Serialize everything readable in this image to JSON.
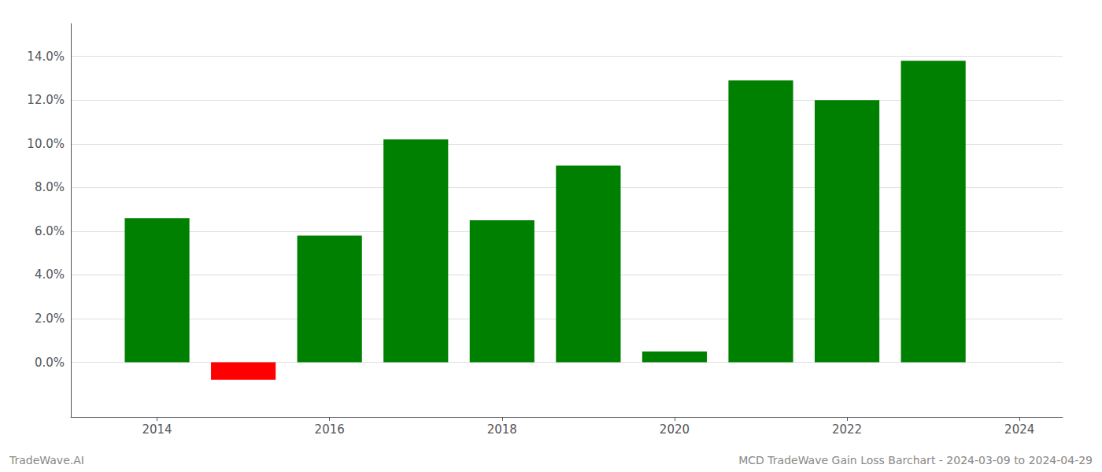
{
  "chart_data": {
    "type": "bar",
    "x": [
      2014,
      2015,
      2016,
      2017,
      2018,
      2019,
      2020,
      2021,
      2022,
      2023
    ],
    "values": [
      0.066,
      -0.008,
      0.058,
      0.102,
      0.065,
      0.09,
      0.005,
      0.129,
      0.12,
      0.138
    ],
    "colors": [
      "#008000",
      "#ff0000",
      "#008000",
      "#008000",
      "#008000",
      "#008000",
      "#008000",
      "#008000",
      "#008000",
      "#008000"
    ],
    "xlim": [
      2013.0,
      2024.5
    ],
    "xticks": [
      2014,
      2016,
      2018,
      2020,
      2022,
      2024
    ],
    "ylim": [
      -0.025,
      0.155
    ],
    "yticks": [
      {
        "value": 0.0,
        "label": "0.0%"
      },
      {
        "value": 0.02,
        "label": "2.0%"
      },
      {
        "value": 0.04,
        "label": "4.0%"
      },
      {
        "value": 0.06,
        "label": "6.0%"
      },
      {
        "value": 0.08,
        "label": "8.0%"
      },
      {
        "value": 0.1,
        "label": "10.0%"
      },
      {
        "value": 0.12,
        "label": "12.0%"
      },
      {
        "value": 0.14,
        "label": "14.0%"
      }
    ],
    "grid": true,
    "annotations": [
      "TradeWave.AI",
      "MCD TradeWave Gain Loss Barchart - 2024-03-09 to 2024-04-29"
    ]
  }
}
